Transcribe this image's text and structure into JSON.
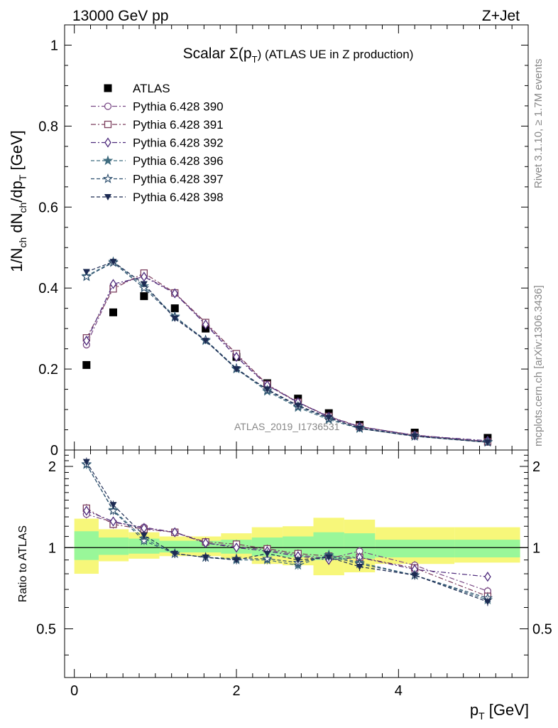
{
  "header": {
    "energy": "13000 GeV pp",
    "process": "Z+Jet"
  },
  "side_labels": {
    "rivet": "Rivet 3.1.10, ≥ 1.7M events",
    "mcplots": "mcplots.cern.ch [arXiv:1306.3436]"
  },
  "colors": {
    "atlas": "#000000",
    "p390": "#7a4a86",
    "p391": "#7c3f5e",
    "p392": "#4e2b7c",
    "p396": "#3f6c7f",
    "p397": "#2f506f",
    "p398": "#1c2a52",
    "band_inner": "#99f799",
    "band_outer": "#f7f77a"
  },
  "chart_data": [
    {
      "type": "scatter",
      "title": "Scalar Σ(p",
      "title_sub": "T",
      "title_tail": ") (ATLAS UE in Z production)",
      "watermark": "ATLAS_2019_I1736531",
      "ylabel": "1/N_ch dN_ch/dp_T [GeV]",
      "ylim": [
        0,
        1.05
      ],
      "yticks": [
        0,
        0.2,
        0.4,
        0.6,
        0.8,
        1
      ],
      "ytick_labels": [
        "0",
        "0.2",
        "0.4",
        "0.6",
        "0.8",
        "1"
      ],
      "x": [
        0.15,
        0.48,
        0.86,
        1.24,
        1.62,
        2.0,
        2.38,
        2.76,
        3.14,
        3.52,
        4.2,
        5.1
      ],
      "series": [
        {
          "name": "ATLAS",
          "marker": "square-filled",
          "values": [
            0.21,
            0.34,
            0.38,
            0.35,
            0.3,
            0.23,
            0.165,
            0.127,
            0.091,
            0.062,
            0.043,
            0.03
          ]
        },
        {
          "name": "Pythia 6.428 390",
          "marker": "circle-open",
          "values": [
            0.26,
            0.405,
            0.43,
            0.388,
            0.312,
            0.235,
            0.16,
            0.117,
            0.082,
            0.057,
            0.037,
            0.021
          ]
        },
        {
          "name": "Pythia 6.428 391",
          "marker": "square-open",
          "values": [
            0.277,
            0.398,
            0.437,
            0.388,
            0.315,
            0.238,
            0.162,
            0.118,
            0.083,
            0.058,
            0.036,
            0.02
          ]
        },
        {
          "name": "Pythia 6.428 392",
          "marker": "diamond-open",
          "values": [
            0.27,
            0.41,
            0.428,
            0.387,
            0.31,
            0.23,
            0.16,
            0.118,
            0.082,
            0.058,
            0.036,
            0.023
          ]
        },
        {
          "name": "Pythia 6.428 396",
          "marker": "star-filled",
          "values": [
            0.43,
            0.465,
            0.405,
            0.33,
            0.27,
            0.2,
            0.145,
            0.105,
            0.075,
            0.053,
            0.034,
            0.019
          ]
        },
        {
          "name": "Pythia 6.428 397",
          "marker": "star-open",
          "values": [
            0.428,
            0.463,
            0.4,
            0.328,
            0.272,
            0.202,
            0.148,
            0.108,
            0.078,
            0.055,
            0.034,
            0.02
          ]
        },
        {
          "name": "Pythia 6.428 398",
          "marker": "triangle-down-filled",
          "values": [
            0.44,
            0.465,
            0.41,
            0.325,
            0.27,
            0.2,
            0.15,
            0.11,
            0.08,
            0.053,
            0.034,
            0.019
          ]
        }
      ]
    },
    {
      "type": "scatter",
      "ylabel": "Ratio to ATLAS",
      "xlabel": "p_T [GeV]",
      "ylim": [
        0.33,
        2.3
      ],
      "xlim": [
        -0.12,
        5.6
      ],
      "xticks": [
        0,
        2,
        4
      ],
      "xtick_labels": [
        "0",
        "2",
        "4"
      ],
      "yticks": [
        0.5,
        1,
        2
      ],
      "ytick_labels": [
        "0.5",
        "1",
        "2"
      ],
      "band_edges": [
        0.0,
        0.3,
        0.67,
        1.05,
        1.43,
        1.81,
        2.19,
        2.57,
        2.95,
        3.33,
        3.71,
        4.69,
        5.5
      ],
      "band_inner": [
        [
          0.9,
          1.15
        ],
        [
          0.94,
          1.09
        ],
        [
          0.95,
          1.08
        ],
        [
          0.96,
          1.06
        ],
        [
          0.96,
          1.06
        ],
        [
          0.95,
          1.07
        ],
        [
          0.93,
          1.09
        ],
        [
          0.92,
          1.1
        ],
        [
          0.9,
          1.14
        ],
        [
          0.91,
          1.13
        ],
        [
          0.92,
          1.07
        ],
        [
          0.92,
          1.07
        ]
      ],
      "band_outer": [
        [
          0.8,
          1.28
        ],
        [
          0.89,
          1.17
        ],
        [
          0.91,
          1.14
        ],
        [
          0.93,
          1.1
        ],
        [
          0.93,
          1.1
        ],
        [
          0.91,
          1.13
        ],
        [
          0.87,
          1.19
        ],
        [
          0.86,
          1.2
        ],
        [
          0.79,
          1.29
        ],
        [
          0.81,
          1.27
        ],
        [
          0.87,
          1.19
        ],
        [
          0.88,
          1.19
        ]
      ],
      "x": [
        0.15,
        0.48,
        0.86,
        1.24,
        1.62,
        2.0,
        2.38,
        2.76,
        3.14,
        3.52,
        4.2,
        5.1
      ],
      "series": [
        {
          "name": "Pythia 6.428 390",
          "marker": "circle-open",
          "values": [
            1.33,
            1.24,
            1.19,
            1.14,
            1.04,
            1.01,
            0.98,
            0.94,
            0.91,
            0.97,
            0.86,
            0.69
          ]
        },
        {
          "name": "Pythia 6.428 391",
          "marker": "square-open",
          "values": [
            1.4,
            1.22,
            1.17,
            1.14,
            1.05,
            1.03,
            0.99,
            0.95,
            0.93,
            0.92,
            0.84,
            0.66
          ]
        },
        {
          "name": "Pythia 6.428 392",
          "marker": "diamond-open",
          "values": [
            1.37,
            1.25,
            1.18,
            1.14,
            1.04,
            1.0,
            0.97,
            0.93,
            0.9,
            0.92,
            0.83,
            0.78
          ]
        },
        {
          "name": "Pythia 6.428 396",
          "marker": "star-filled",
          "values": [
            2.03,
            1.38,
            1.08,
            0.95,
            0.92,
            0.9,
            0.9,
            0.86,
            0.94,
            0.88,
            0.79,
            0.64
          ]
        },
        {
          "name": "Pythia 6.428 397",
          "marker": "star-open",
          "values": [
            2.04,
            1.37,
            1.06,
            0.95,
            0.92,
            0.91,
            0.91,
            0.88,
            0.93,
            0.87,
            0.79,
            0.65
          ]
        },
        {
          "name": "Pythia 6.428 398",
          "marker": "triangle-down-filled",
          "values": [
            2.08,
            1.44,
            1.11,
            0.95,
            0.92,
            0.9,
            0.95,
            0.9,
            0.92,
            0.85,
            0.79,
            0.63
          ]
        }
      ]
    }
  ]
}
